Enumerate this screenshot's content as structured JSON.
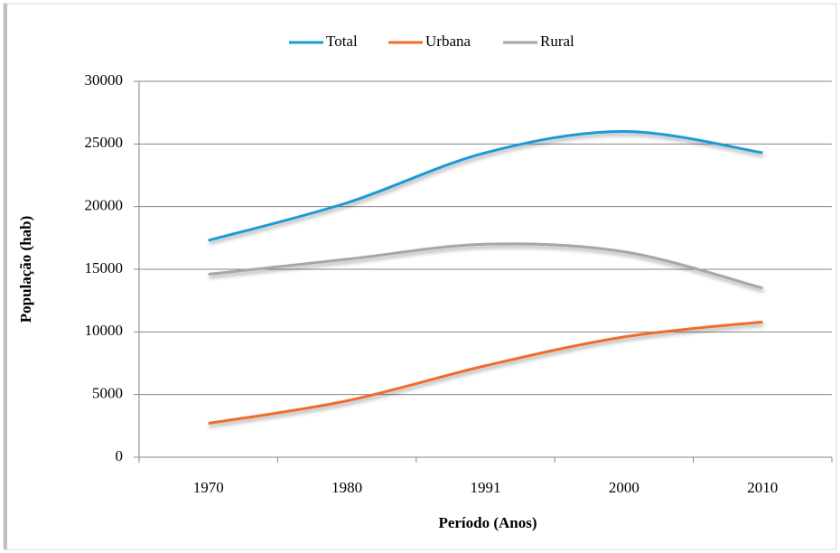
{
  "chart_data": {
    "type": "line",
    "categories": [
      "1970",
      "1980",
      "1991",
      "2000",
      "2010"
    ],
    "series": [
      {
        "name": "Total",
        "color": "#1a9ad6",
        "values": [
          17300,
          20300,
          24300,
          26000,
          24300
        ]
      },
      {
        "name": "Urbana",
        "color": "#ef6c2c",
        "values": [
          2700,
          4500,
          7300,
          9600,
          10800
        ]
      },
      {
        "name": "Rural",
        "color": "#a6a6a6",
        "values": [
          14600,
          15800,
          17000,
          16400,
          13500
        ]
      }
    ],
    "ylim": [
      0,
      30000
    ],
    "yticks": [
      0,
      5000,
      10000,
      15000,
      20000,
      25000,
      30000
    ],
    "xlabel": "Período (Anos)",
    "ylabel": "População (hab)",
    "grid": true,
    "legend": "top",
    "smooth": true
  }
}
